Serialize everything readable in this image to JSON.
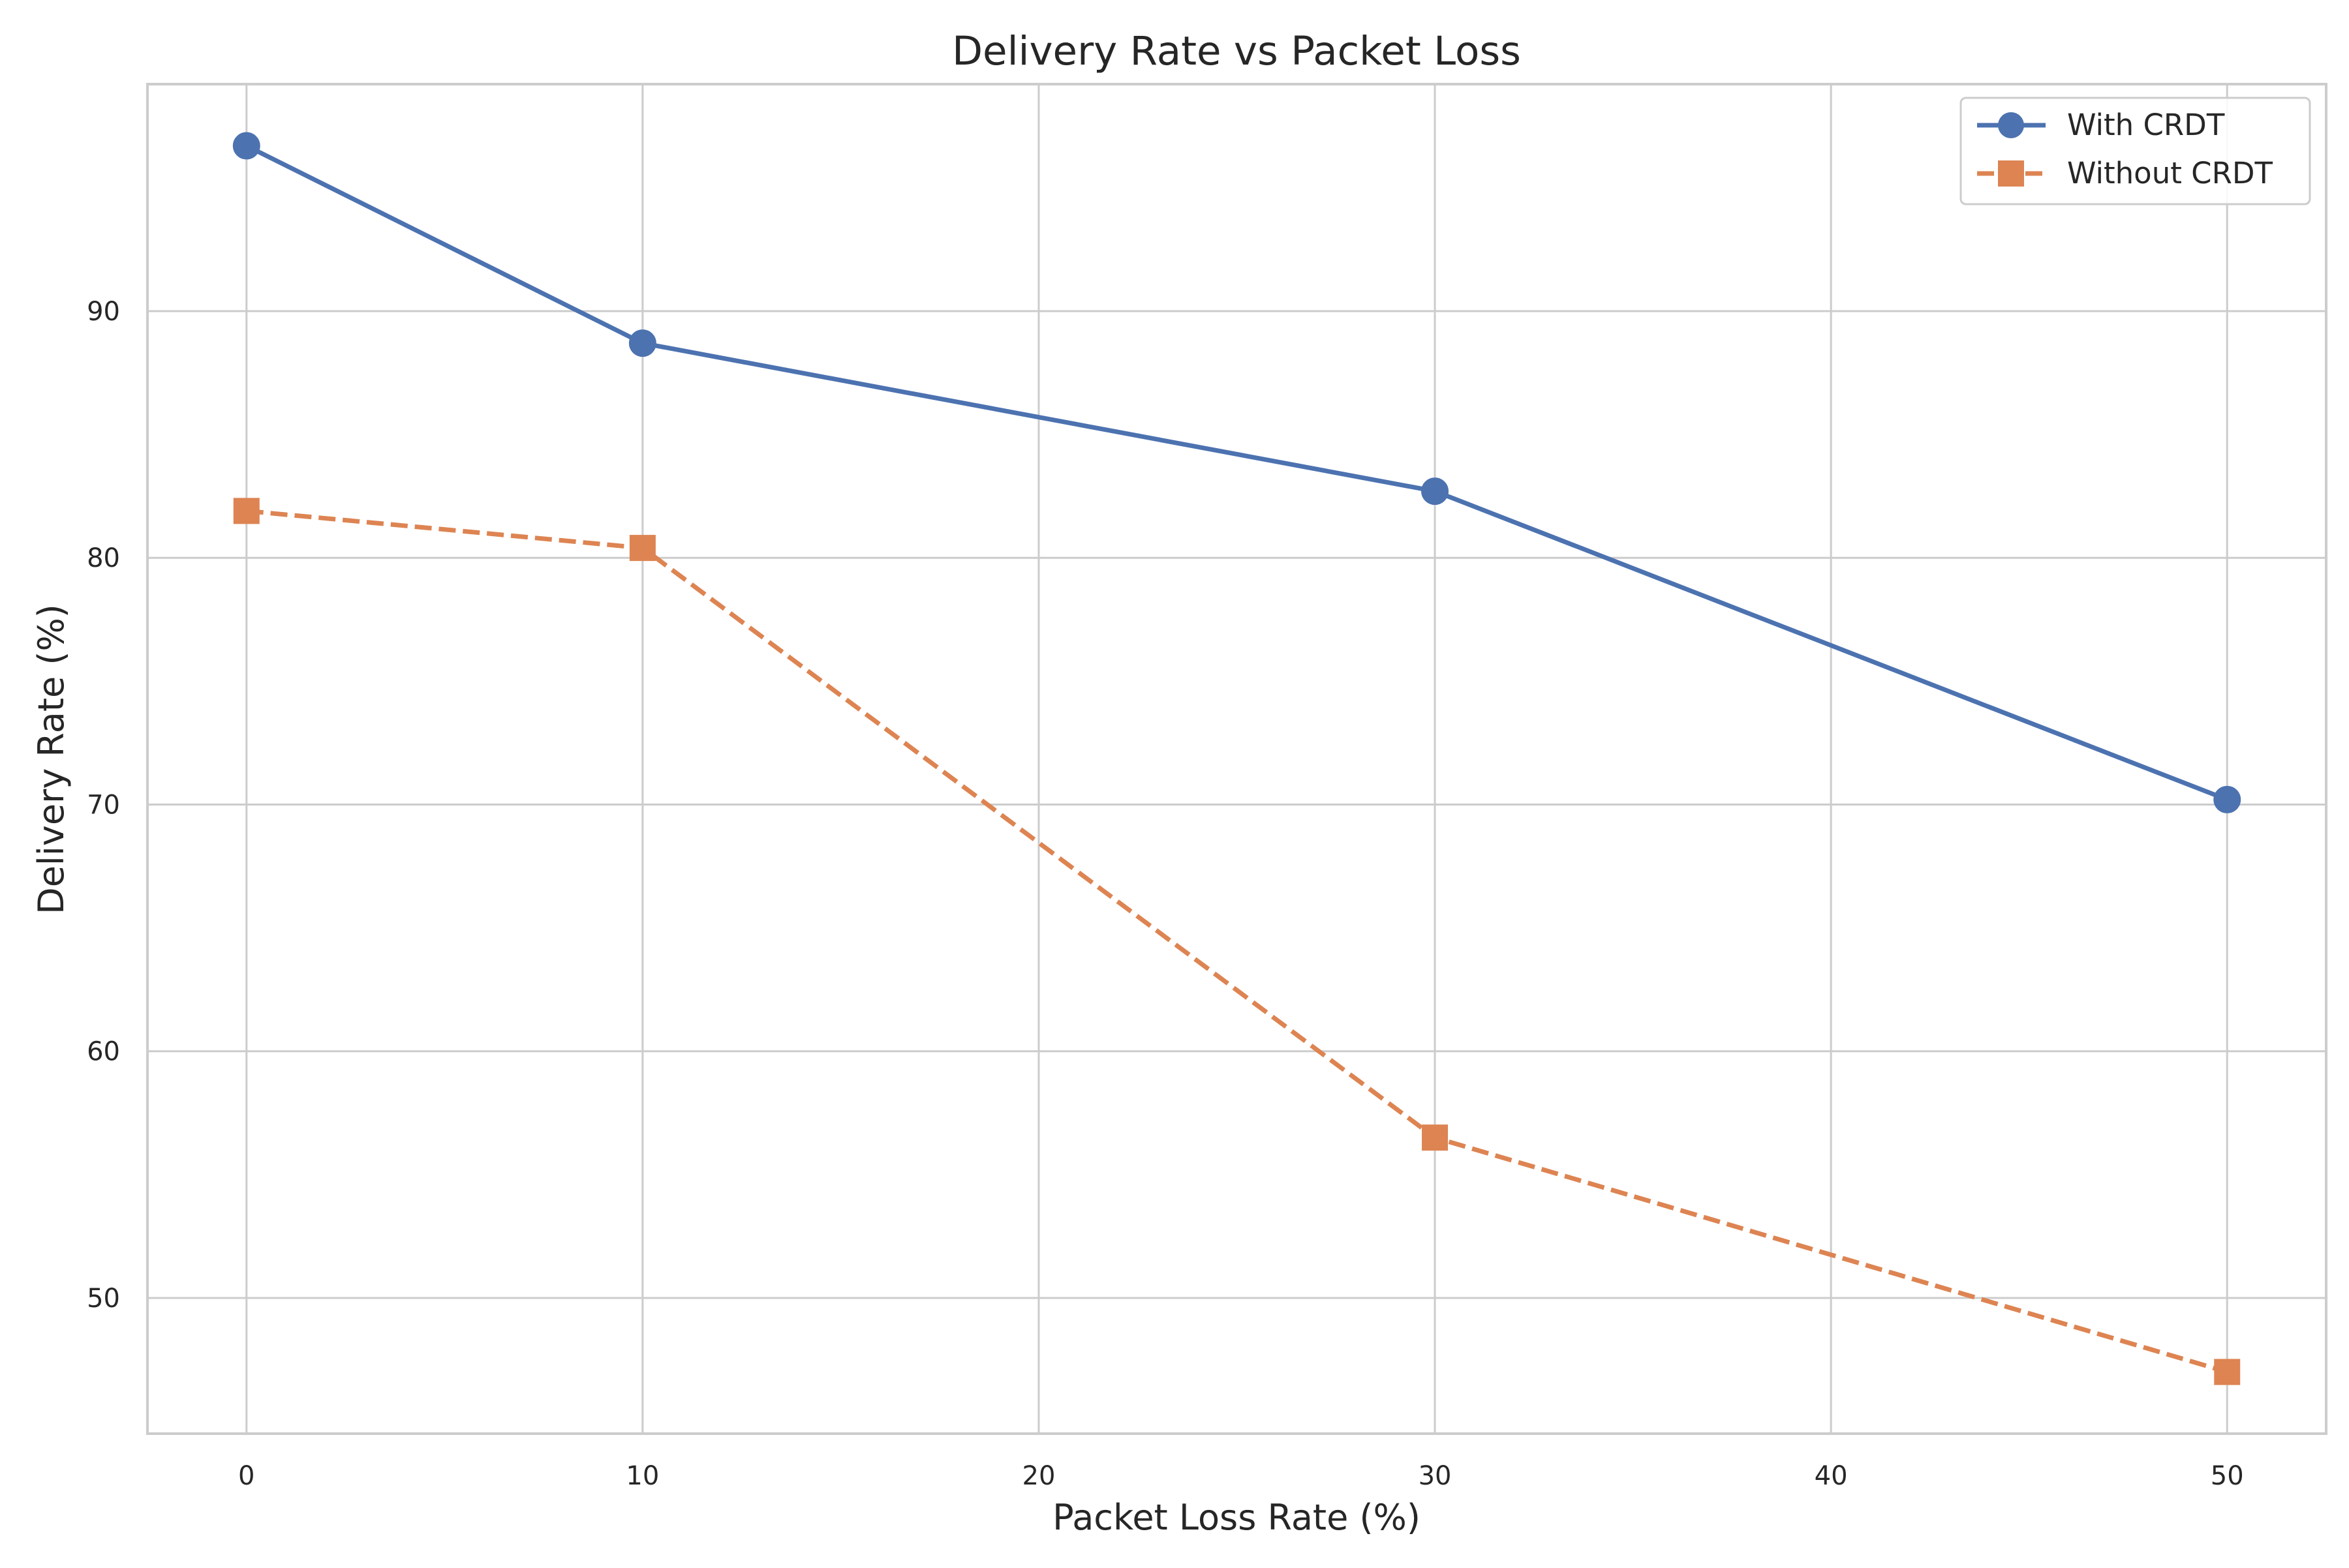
{
  "chart_data": {
    "type": "line",
    "title": "Delivery Rate vs Packet Loss",
    "xlabel": "Packet Loss Rate (%)",
    "ylabel": "Delivery Rate (%)",
    "x": [
      0,
      10,
      30,
      50
    ],
    "xticks": [
      0,
      10,
      20,
      30,
      40,
      50
    ],
    "yticks": [
      50,
      60,
      70,
      80,
      90
    ],
    "xlim": [
      -2.5,
      52.5
    ],
    "ylim": [
      44.5,
      99.2
    ],
    "grid": true,
    "legend_position": "top-right",
    "series": [
      {
        "name": "With CRDT",
        "values": [
          96.7,
          88.7,
          82.7,
          70.2
        ],
        "color": "#4c72b0",
        "line_style": "solid",
        "marker": "circle"
      },
      {
        "name": "Without CRDT",
        "values": [
          81.9,
          80.4,
          56.5,
          47.0
        ],
        "color": "#dd8452",
        "line_style": "dashed",
        "marker": "square"
      }
    ]
  }
}
